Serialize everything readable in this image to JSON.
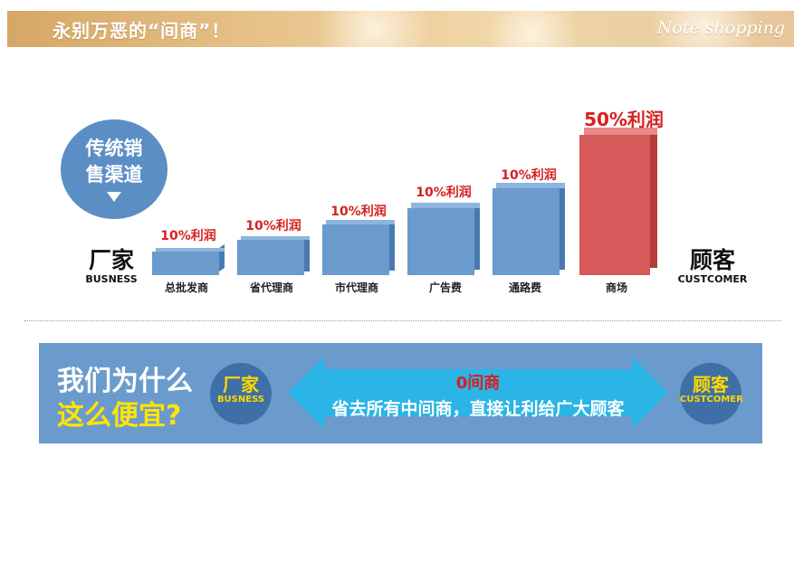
{
  "banner": {
    "title": "永别万恶的“间商”！",
    "brand": "Note shopping"
  },
  "channel_tag": {
    "line1": "传统销",
    "line2": "售渠道"
  },
  "manufacturer": {
    "cn": "厂家",
    "en": "BUSNESS"
  },
  "customer": {
    "cn": "顾客",
    "en": "CUSTCOMER"
  },
  "steps": [
    {
      "label": "总批发商",
      "profit": "10%利润"
    },
    {
      "label": "省代理商",
      "profit": "10%利润"
    },
    {
      "label": "市代理商",
      "profit": "10%利润"
    },
    {
      "label": "广告费",
      "profit": "10%利润"
    },
    {
      "label": "通路费",
      "profit": "10%利润"
    },
    {
      "label": "商场",
      "profit": "50%利润"
    }
  ],
  "bottom": {
    "why_line1": "我们为什么",
    "why_line2": "这么便宜?",
    "manufacturer": {
      "cn": "厂家",
      "en": "BUSNESS"
    },
    "customer": {
      "cn": "顾客",
      "en": "CUSTCOMER"
    },
    "arrow_title": "0间商",
    "arrow_subtitle": "省去所有中间商，直接让利给广大顾客"
  },
  "colors": {
    "bar_blue": "#6a9bcc",
    "bar_red": "#d65a5a",
    "profit_red": "#d62020",
    "panel_blue": "#6b9bcd",
    "arrow_cyan": "#2bb4e6",
    "highlight_yellow": "#ffe400"
  }
}
